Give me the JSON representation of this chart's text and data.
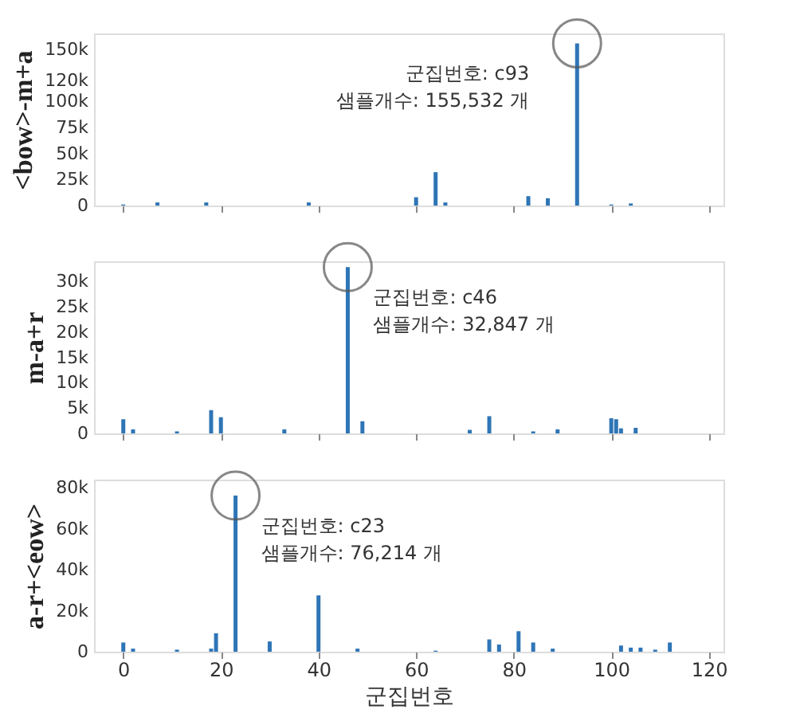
{
  "chart_data": [
    {
      "type": "bar",
      "ylabel": "<bow>-m+a",
      "x": [
        0,
        7,
        17,
        38,
        60,
        64,
        66,
        83,
        87,
        93,
        100,
        104
      ],
      "values": [
        1000,
        3000,
        3000,
        3000,
        8000,
        32000,
        3000,
        9000,
        7000,
        155532,
        1000,
        2000
      ],
      "color": "#2e75b6",
      "xlim": [
        -6,
        123
      ],
      "xticks": [
        0,
        20,
        40,
        60,
        80,
        100,
        120
      ],
      "ylim": [
        0,
        165000
      ],
      "yticks": [
        0,
        {
          "value": 25000,
          "label": "25k"
        },
        {
          "value": 50000,
          "label": "50k"
        },
        {
          "value": 75000,
          "label": "75k"
        },
        {
          "value": 100000,
          "label": "100k"
        },
        {
          "value": 120000,
          "label": "120k"
        },
        {
          "value": 150000,
          "label": "150k"
        }
      ],
      "annotations": [
        {
          "text": "군집번호: c93\n샘플개수: 155,532 개",
          "x": 93,
          "y": 155532
        }
      ],
      "tick_labels": "y",
      "grid": false
    },
    {
      "type": "bar",
      "ylabel": "m-a+r",
      "x": [
        0,
        2,
        11,
        18,
        20,
        33,
        46,
        49,
        71,
        75,
        84,
        89,
        100,
        101,
        102,
        105
      ],
      "values": [
        2800,
        800,
        400,
        4600,
        3200,
        800,
        32847,
        2400,
        700,
        3400,
        400,
        800,
        3000,
        2800,
        1000,
        1100
      ],
      "color": "#2e75b6",
      "xlim": [
        -6,
        123
      ],
      "xticks": [
        0,
        20,
        40,
        60,
        80,
        100,
        120
      ],
      "ylim": [
        0,
        34000
      ],
      "yticks": [
        0,
        {
          "value": 5000,
          "label": "5k"
        },
        {
          "value": 10000,
          "label": "10k"
        },
        {
          "value": 15000,
          "label": "15k"
        },
        {
          "value": 20000,
          "label": "20k"
        },
        {
          "value": 25000,
          "label": "25k"
        },
        {
          "value": 30000,
          "label": "30k"
        }
      ],
      "annotations": [
        {
          "text": "군집번호: c46\n샘플개수: 32,847 개",
          "x": 46,
          "y": 32847
        }
      ],
      "tick_labels": "y",
      "grid": false
    },
    {
      "type": "bar",
      "xlabel": "군집번호",
      "ylabel": "a-r+<eow>",
      "x": [
        0,
        2,
        11,
        18,
        19,
        23,
        30,
        40,
        48,
        64,
        75,
        77,
        81,
        84,
        88,
        102,
        104,
        106,
        109,
        112
      ],
      "values": [
        4500,
        1500,
        1000,
        1500,
        9000,
        76214,
        5000,
        27500,
        1500,
        500,
        6000,
        3500,
        10000,
        4500,
        1500,
        3000,
        2000,
        2000,
        1000,
        4500
      ],
      "color": "#2e75b6",
      "xlim": [
        -6,
        123
      ],
      "xticks": [
        0,
        20,
        40,
        60,
        80,
        100,
        120
      ],
      "ylim": [
        0,
        84000
      ],
      "yticks": [
        0,
        {
          "value": 20000,
          "label": "20k"
        },
        {
          "value": 40000,
          "label": "40k"
        },
        {
          "value": 60000,
          "label": "60k"
        },
        {
          "value": 80000,
          "label": "80k"
        }
      ],
      "annotations": [
        {
          "text": "군집번호: c23\n샘플개수: 76,214 개",
          "x": 23,
          "y": 76214
        }
      ],
      "grid": false
    }
  ]
}
